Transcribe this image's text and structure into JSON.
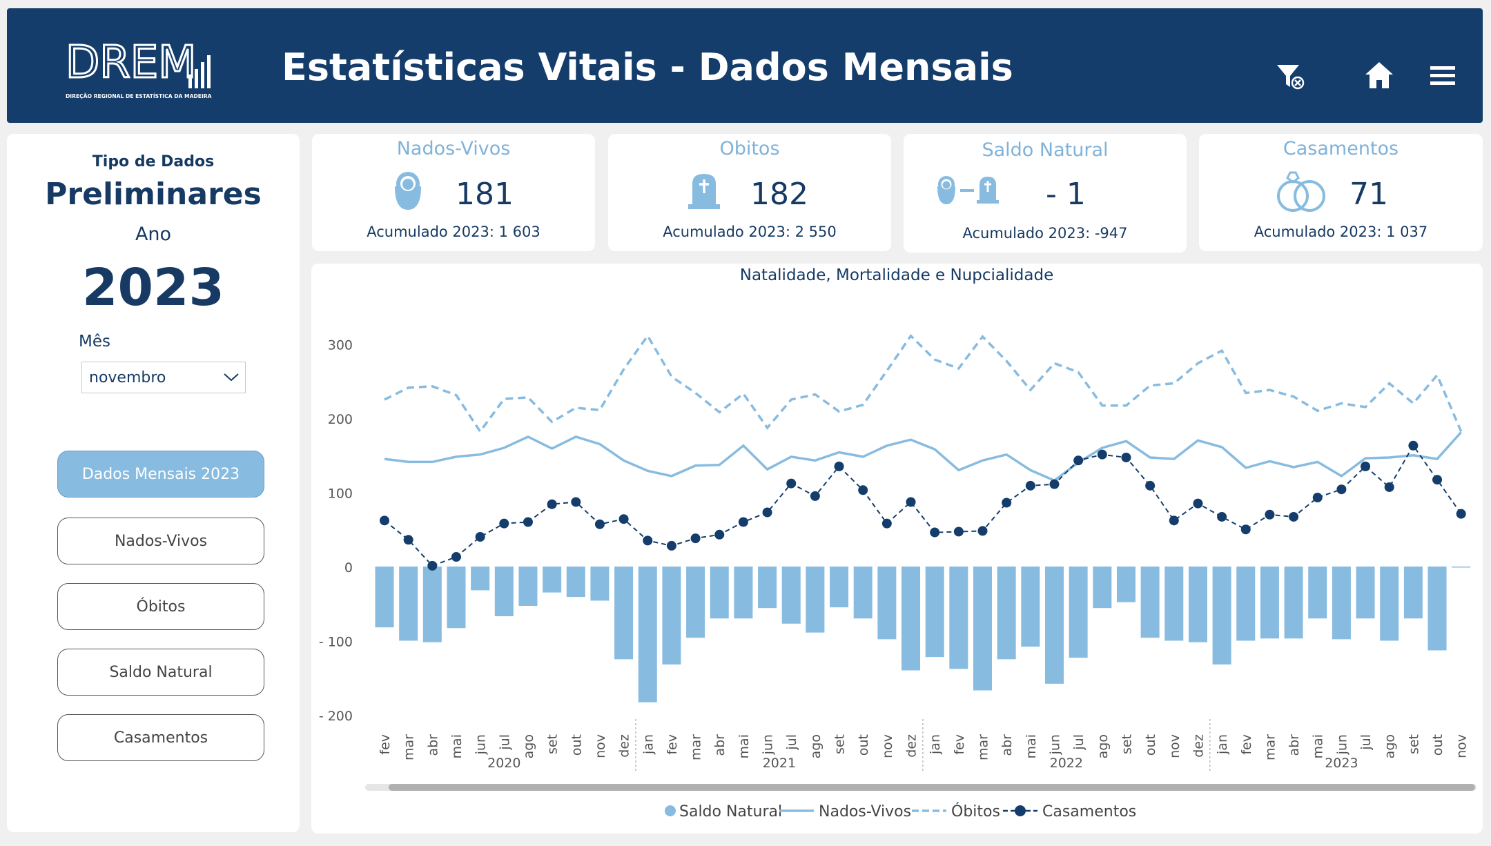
{
  "header": {
    "title": "Estatísticas Vitais - Dados Mensais",
    "logo_letters": "DREM",
    "logo_subtitle": "DIREÇÃO REGIONAL DE ESTATÍSTICA DA MADEIRA",
    "icons": [
      "filter-clear-icon",
      "home-icon",
      "menu-icon"
    ]
  },
  "sidebar": {
    "tipo_label": "Tipo de Dados",
    "tipo_value": "Preliminares",
    "ano_label": "Ano",
    "ano_value": "2023",
    "mes_label": "Mês",
    "mes_value": "novembro",
    "buttons": [
      "Dados Mensais 2023",
      "Nados-Vivos",
      "Óbitos",
      "Saldo Natural",
      "Casamentos"
    ]
  },
  "kpis": [
    {
      "title": "Nados-Vivos",
      "value": "181",
      "acc": "Acumulado 2023: 1 603",
      "icon": "baby-icon"
    },
    {
      "title": "Obitos",
      "value": "182",
      "acc": "Acumulado 2023: 2 550",
      "icon": "grave-icon"
    },
    {
      "title": "Saldo Natural",
      "value": "- 1",
      "acc": "Acumulado 2023: -947",
      "icon": "baby-minus-grave-icon"
    },
    {
      "title": "Casamentos",
      "value": "71",
      "acc": "Acumulado 2023: 1 037",
      "icon": "rings-icon"
    }
  ],
  "colors": {
    "dark": "#143d6b",
    "light": "#87bbe0",
    "text": "#163a64"
  },
  "chart_data": {
    "type": "bar+line",
    "title": "Natalidade, Mortalidade e Nupcialidade",
    "ylim": [
      -200,
      320
    ],
    "yticks": [
      "300",
      "200",
      "100",
      "0",
      "- 100",
      "- 200"
    ],
    "yticks_values": [
      300,
      200,
      100,
      0,
      -100,
      -200
    ],
    "years": [
      {
        "label": "2020",
        "months": [
          "fev",
          "mar",
          "abr",
          "mai",
          "jun",
          "jul",
          "ago",
          "set",
          "out",
          "nov",
          "dez"
        ]
      },
      {
        "label": "2021",
        "months": [
          "jan",
          "fev",
          "mar",
          "abr",
          "mai",
          "jun",
          "jul",
          "ago",
          "set",
          "out",
          "nov",
          "dez"
        ]
      },
      {
        "label": "2022",
        "months": [
          "jan",
          "fev",
          "mar",
          "abr",
          "mai",
          "jun",
          "jul",
          "ago",
          "set",
          "out",
          "nov",
          "dez"
        ]
      },
      {
        "label": "2023",
        "months": [
          "jan",
          "fev",
          "mar",
          "abr",
          "mai",
          "jun",
          "jul",
          "ago",
          "set",
          "out",
          "nov"
        ]
      }
    ],
    "series": [
      {
        "name": "Saldo Natural",
        "kind": "bar",
        "values": [
          -82,
          -100,
          -102,
          -83,
          -32,
          -67,
          -53,
          -35,
          -41,
          -46,
          -125,
          -183,
          -132,
          -96,
          -70,
          -70,
          -56,
          -77,
          -89,
          -55,
          -70,
          -98,
          -140,
          -122,
          -138,
          -167,
          -125,
          -108,
          -158,
          -123,
          -56,
          -48,
          -96,
          -100,
          -102,
          -132,
          -100,
          -97,
          -97,
          -70,
          -98,
          -70,
          -100,
          -70,
          -113,
          -1
        ]
      },
      {
        "name": "Nados-Vivos",
        "kind": "line",
        "values": [
          145,
          141,
          141,
          148,
          151,
          160,
          175,
          159,
          175,
          165,
          143,
          129,
          122,
          136,
          137,
          163,
          131,
          148,
          143,
          154,
          148,
          163,
          171,
          158,
          130,
          143,
          151,
          130,
          116,
          140,
          160,
          169,
          147,
          145,
          170,
          161,
          133,
          142,
          134,
          141,
          122,
          146,
          147,
          150,
          145,
          181
        ]
      },
      {
        "name": "Óbitos",
        "kind": "dashed",
        "values": [
          225,
          241,
          243,
          231,
          182,
          226,
          228,
          195,
          214,
          211,
          266,
          311,
          256,
          234,
          208,
          233,
          187,
          225,
          232,
          209,
          218,
          264,
          311,
          279,
          267,
          310,
          277,
          238,
          274,
          262,
          217,
          217,
          244,
          247,
          274,
          291,
          234,
          238,
          229,
          210,
          220,
          215,
          247,
          220,
          258,
          182
        ]
      },
      {
        "name": "Casamentos",
        "kind": "dotted-line",
        "values": [
          62,
          36,
          1,
          13,
          40,
          58,
          60,
          84,
          87,
          57,
          64,
          35,
          28,
          38,
          43,
          60,
          73,
          112,
          95,
          135,
          103,
          58,
          87,
          46,
          47,
          48,
          86,
          109,
          111,
          143,
          151,
          147,
          109,
          62,
          85,
          67,
          50,
          70,
          67,
          93,
          104,
          135,
          107,
          163,
          117,
          71
        ]
      }
    ]
  }
}
